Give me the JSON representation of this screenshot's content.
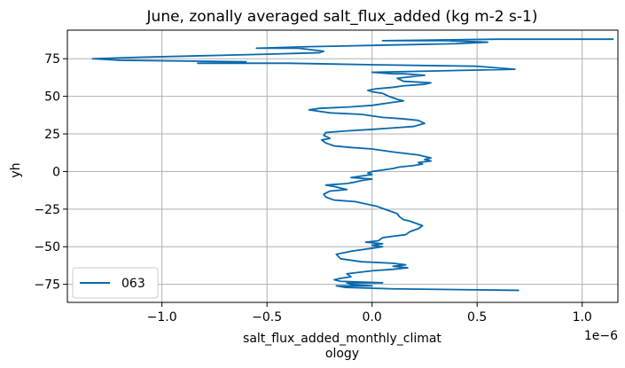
{
  "chart_data": {
    "type": "line",
    "title": "June, zonally averaged salt_flux_added (kg m-2 s-1)",
    "xlabel_line1": "salt_flux_added_monthly_climat",
    "xlabel_line2": "ology",
    "ylabel": "yh",
    "x_offset_text": "1e−6",
    "xlim": [
      -1.45,
      1.17
    ],
    "ylim": [
      -87,
      94
    ],
    "x_scale_exponent": -6,
    "xticks": [
      -1.0,
      -0.5,
      0.0,
      0.5,
      1.0
    ],
    "xtick_labels": [
      "−1.0",
      "−0.5",
      "0.0",
      "0.5",
      "1.0"
    ],
    "yticks": [
      -75,
      -50,
      -25,
      0,
      25,
      50,
      75
    ],
    "ytick_labels": [
      "−75",
      "−50",
      "−25",
      "0",
      "25",
      "50",
      "75"
    ],
    "grid": true,
    "legend_position": "lower-left",
    "series": [
      {
        "name": "063",
        "color": "#0868ac",
        "points": [
          [
            0.7,
            -79
          ],
          [
            0.1,
            -78
          ],
          [
            -0.13,
            -77
          ],
          [
            -0.17,
            -76
          ],
          [
            0.0,
            -76
          ],
          [
            -0.1,
            -75
          ],
          [
            -0.12,
            -74
          ],
          [
            0.05,
            -74
          ],
          [
            -0.15,
            -73
          ],
          [
            -0.18,
            -72
          ],
          [
            -0.15,
            -71
          ],
          [
            -0.1,
            -70
          ],
          [
            -0.12,
            -68
          ],
          [
            0.0,
            -66
          ],
          [
            0.1,
            -65
          ],
          [
            0.17,
            -64
          ],
          [
            0.1,
            -63
          ],
          [
            0.16,
            -62
          ],
          [
            0.1,
            -61
          ],
          [
            -0.05,
            -60
          ],
          [
            -0.15,
            -58
          ],
          [
            -0.17,
            -55
          ],
          [
            -0.1,
            -53
          ],
          [
            -0.05,
            -52
          ],
          [
            0.0,
            -51
          ],
          [
            0.05,
            -50
          ],
          [
            0.0,
            -49
          ],
          [
            0.05,
            -48
          ],
          [
            -0.03,
            -47
          ],
          [
            0.03,
            -46
          ],
          [
            0.05,
            -44
          ],
          [
            0.1,
            -43
          ],
          [
            0.16,
            -42
          ],
          [
            0.18,
            -40
          ],
          [
            0.22,
            -38
          ],
          [
            0.24,
            -36
          ],
          [
            0.2,
            -34
          ],
          [
            0.18,
            -33
          ],
          [
            0.15,
            -32
          ],
          [
            0.13,
            -30
          ],
          [
            0.12,
            -28
          ],
          [
            0.1,
            -27
          ],
          [
            0.06,
            -25
          ],
          [
            0.02,
            -23
          ],
          [
            -0.08,
            -20
          ],
          [
            -0.18,
            -19
          ],
          [
            -0.22,
            -17
          ],
          [
            -0.23,
            -15
          ],
          [
            -0.2,
            -13
          ],
          [
            -0.12,
            -12
          ],
          [
            -0.15,
            -11
          ],
          [
            -0.18,
            -10
          ],
          [
            -0.22,
            -9
          ],
          [
            -0.12,
            -8
          ],
          [
            -0.08,
            -7
          ],
          [
            -0.05,
            -6
          ],
          [
            0.0,
            -5
          ],
          [
            -0.1,
            -4
          ],
          [
            -0.05,
            -3
          ],
          [
            0.0,
            -2
          ],
          [
            -0.02,
            -1
          ],
          [
            0.0,
            0
          ],
          [
            0.05,
            1
          ],
          [
            0.1,
            2
          ],
          [
            0.13,
            3
          ],
          [
            0.2,
            4
          ],
          [
            0.24,
            5
          ],
          [
            0.22,
            6
          ],
          [
            0.28,
            7
          ],
          [
            0.25,
            8
          ],
          [
            0.28,
            9
          ],
          [
            0.22,
            11
          ],
          [
            0.1,
            13
          ],
          [
            0.0,
            15
          ],
          [
            -0.1,
            16
          ],
          [
            -0.18,
            17
          ],
          [
            -0.22,
            19
          ],
          [
            -0.24,
            21
          ],
          [
            -0.2,
            22
          ],
          [
            -0.23,
            24
          ],
          [
            -0.22,
            26
          ],
          [
            -0.12,
            27
          ],
          [
            0.0,
            28
          ],
          [
            0.1,
            29
          ],
          [
            0.2,
            30
          ],
          [
            0.25,
            32
          ],
          [
            0.22,
            34
          ],
          [
            0.15,
            35
          ],
          [
            0.05,
            36
          ],
          [
            -0.05,
            38
          ],
          [
            -0.2,
            39
          ],
          [
            -0.3,
            41
          ],
          [
            -0.25,
            42
          ],
          [
            -0.1,
            43
          ],
          [
            0.0,
            44
          ],
          [
            0.1,
            46
          ],
          [
            0.15,
            47
          ],
          [
            0.12,
            48
          ],
          [
            0.08,
            50
          ],
          [
            0.05,
            52
          ],
          [
            0.0,
            53
          ],
          [
            -0.02,
            54
          ],
          [
            0.02,
            55
          ],
          [
            0.1,
            56
          ],
          [
            0.15,
            57
          ],
          [
            0.25,
            58
          ],
          [
            0.28,
            59
          ],
          [
            0.15,
            60
          ],
          [
            0.12,
            62
          ],
          [
            0.25,
            64
          ],
          [
            0.15,
            65
          ],
          [
            0.1,
            65
          ],
          [
            0.0,
            66
          ],
          [
            0.68,
            68
          ],
          [
            0.5,
            70
          ],
          [
            0.0,
            71
          ],
          [
            -0.4,
            72
          ],
          [
            -0.83,
            72
          ],
          [
            -0.6,
            73
          ],
          [
            -1.2,
            74
          ],
          [
            -1.33,
            75
          ],
          [
            -1.1,
            76
          ],
          [
            -0.8,
            77
          ],
          [
            -0.5,
            78
          ],
          [
            -0.25,
            79
          ],
          [
            -0.23,
            80
          ],
          [
            -0.35,
            82
          ],
          [
            -0.55,
            82
          ],
          [
            -0.3,
            83
          ],
          [
            0.05,
            84
          ],
          [
            0.4,
            85
          ],
          [
            0.55,
            86
          ],
          [
            0.35,
            87
          ],
          [
            0.05,
            87
          ],
          [
            0.6,
            88
          ],
          [
            1.15,
            88
          ]
        ]
      }
    ]
  }
}
